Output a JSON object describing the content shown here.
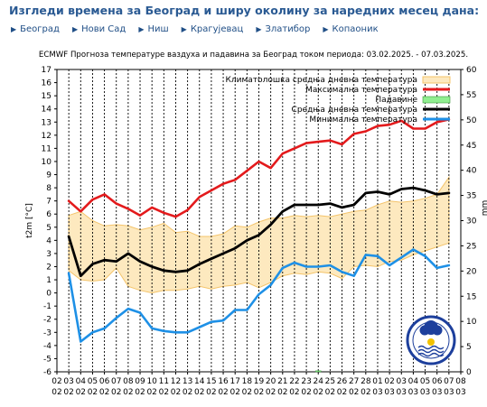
{
  "header": {
    "title": "Изгледи времена за Београд и ширу околину за наредних месец дана:"
  },
  "nav": {
    "items": [
      {
        "label": "Београд"
      },
      {
        "label": "Нови Сад"
      },
      {
        "label": "Ниш"
      },
      {
        "label": "Крагујевац"
      },
      {
        "label": "Златибор"
      },
      {
        "label": "Копаоник"
      }
    ]
  },
  "colors": {
    "max": "#e31a1c",
    "mean": "#000000",
    "min": "#1e90e6",
    "clim_fill": "#fde9bf",
    "clim_edge": "#f4c46a",
    "precip": "#90ee90",
    "title_blue": "#2a5a93"
  },
  "chart_data": {
    "type": "line",
    "title": "ECMWF Прогноза температуре ваздуха и падавина за Београд током периода: 03.02.2025. - 07.03.2025.",
    "ylabel": "t2m [°C]",
    "ylabel_right": "mm",
    "ylim": [
      -6,
      17
    ],
    "ylim_right": [
      0,
      60
    ],
    "x_labels": [
      {
        "day": "02",
        "month": "02"
      },
      {
        "day": "03",
        "month": "02"
      },
      {
        "day": "04",
        "month": "02"
      },
      {
        "day": "05",
        "month": "02"
      },
      {
        "day": "06",
        "month": "02"
      },
      {
        "day": "07",
        "month": "02"
      },
      {
        "day": "08",
        "month": "02"
      },
      {
        "day": "09",
        "month": "02"
      },
      {
        "day": "10",
        "month": "02"
      },
      {
        "day": "11",
        "month": "02"
      },
      {
        "day": "12",
        "month": "02"
      },
      {
        "day": "13",
        "month": "02"
      },
      {
        "day": "14",
        "month": "02"
      },
      {
        "day": "15",
        "month": "02"
      },
      {
        "day": "16",
        "month": "02"
      },
      {
        "day": "17",
        "month": "02"
      },
      {
        "day": "18",
        "month": "02"
      },
      {
        "day": "19",
        "month": "02"
      },
      {
        "day": "20",
        "month": "02"
      },
      {
        "day": "21",
        "month": "02"
      },
      {
        "day": "22",
        "month": "02"
      },
      {
        "day": "23",
        "month": "02"
      },
      {
        "day": "24",
        "month": "02"
      },
      {
        "day": "25",
        "month": "02"
      },
      {
        "day": "26",
        "month": "02"
      },
      {
        "day": "27",
        "month": "02"
      },
      {
        "day": "28",
        "month": "02"
      },
      {
        "day": "01",
        "month": "03"
      },
      {
        "day": "02",
        "month": "03"
      },
      {
        "day": "03",
        "month": "03"
      },
      {
        "day": "04",
        "month": "03"
      },
      {
        "day": "05",
        "month": "03"
      },
      {
        "day": "06",
        "month": "03"
      },
      {
        "day": "07",
        "month": "03"
      },
      {
        "day": "08",
        "month": "03"
      }
    ],
    "y_ticks": [
      -6,
      -5,
      -4,
      -3,
      -2,
      -1,
      0,
      1,
      2,
      3,
      4,
      5,
      6,
      7,
      8,
      9,
      10,
      11,
      12,
      13,
      14,
      15,
      16,
      17
    ],
    "y_ticks_right": [
      0,
      5,
      10,
      15,
      20,
      25,
      30,
      35,
      40,
      45,
      50,
      55,
      60
    ],
    "legend": [
      {
        "label": "Климатолошка средња дневна температура",
        "type": "area"
      },
      {
        "label": "Максимална температура",
        "type": "max"
      },
      {
        "label": "Падавине",
        "type": "precip"
      },
      {
        "label": "Средња дневна температура",
        "type": "mean"
      },
      {
        "label": "Минимална температура",
        "type": "min"
      }
    ],
    "series": [
      {
        "name": "Максимална температура",
        "key": "max",
        "values": [
          7.0,
          6.2,
          7.1,
          7.5,
          6.8,
          6.4,
          5.9,
          6.5,
          6.1,
          5.8,
          6.3,
          7.3,
          7.8,
          8.3,
          8.6,
          9.3,
          10.0,
          9.5,
          10.6,
          11.0,
          11.4,
          11.5,
          11.6,
          11.3,
          12.1,
          12.3,
          12.7,
          12.8,
          13.1,
          12.5,
          12.5,
          13.0,
          13.2
        ]
      },
      {
        "name": "Средња дневна температура",
        "key": "mean",
        "values": [
          4.3,
          1.3,
          2.2,
          2.5,
          2.4,
          3.0,
          2.4,
          2.0,
          1.7,
          1.6,
          1.7,
          2.2,
          2.6,
          3.0,
          3.4,
          4.0,
          4.4,
          5.2,
          6.2,
          6.7,
          6.7,
          6.7,
          6.8,
          6.5,
          6.7,
          7.6,
          7.7,
          7.5,
          7.9,
          8.0,
          7.8,
          7.5,
          7.6
        ]
      },
      {
        "name": "Минимална температура",
        "key": "min",
        "values": [
          1.5,
          -3.7,
          -3.0,
          -2.7,
          -1.9,
          -1.2,
          -1.5,
          -2.7,
          -2.9,
          -3.0,
          -3.0,
          -2.6,
          -2.2,
          -2.1,
          -1.3,
          -1.3,
          -0.1,
          0.6,
          1.9,
          2.3,
          2.0,
          2.0,
          2.1,
          1.6,
          1.3,
          2.9,
          2.8,
          2.1,
          2.7,
          3.3,
          2.8,
          1.9,
          2.1
        ]
      },
      {
        "name": "Климатолошка средња дневна температура (горња граница)",
        "key": "clim_upper",
        "values": [
          5.9,
          6.2,
          5.5,
          5.1,
          5.2,
          5.1,
          4.8,
          5.0,
          5.3,
          4.6,
          4.7,
          4.3,
          4.3,
          4.5,
          5.1,
          5.0,
          5.4,
          5.7,
          5.7,
          5.9,
          5.8,
          5.9,
          5.8,
          6.0,
          6.2,
          6.3,
          6.7,
          7.0,
          6.9,
          7.0,
          7.2,
          7.5,
          8.8
        ]
      },
      {
        "name": "Климатолошка средња дневна температура (доња граница)",
        "key": "clim_lower",
        "values": [
          1.7,
          1.0,
          0.9,
          1.0,
          1.9,
          0.5,
          0.2,
          0.0,
          0.2,
          0.2,
          0.3,
          0.5,
          0.3,
          0.5,
          0.6,
          0.8,
          0.4,
          0.8,
          1.3,
          1.5,
          1.4,
          1.6,
          1.5,
          1.1,
          2.0,
          2.1,
          2.0,
          2.4,
          2.5,
          2.9,
          3.2,
          3.5,
          3.8
        ]
      },
      {
        "name": "Падавине",
        "key": "precip",
        "values": [
          0,
          0,
          0,
          0,
          0,
          0,
          0,
          0,
          0,
          0,
          0,
          0,
          0,
          0,
          0,
          0,
          0,
          0,
          0,
          0,
          0,
          0.2,
          0,
          0,
          0,
          0,
          0,
          0,
          0,
          0,
          0,
          0,
          0
        ]
      }
    ],
    "grid": true
  }
}
